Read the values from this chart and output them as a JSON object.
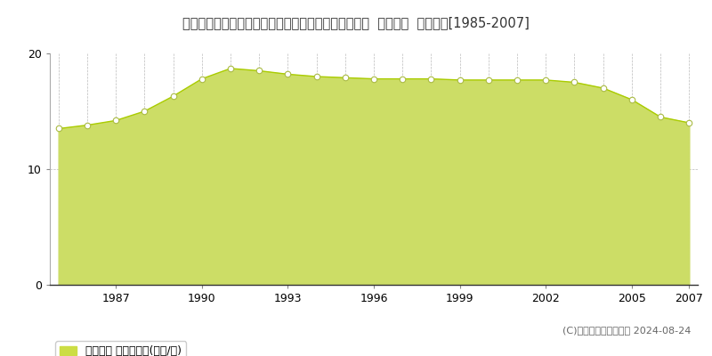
{
  "title": "広島県福山市津之郷町大字加屋字内水越３３４番１外  地価公示  地価推移[1985-2007]",
  "years": [
    1985,
    1986,
    1987,
    1988,
    1989,
    1990,
    1991,
    1992,
    1993,
    1994,
    1995,
    1996,
    1997,
    1998,
    1999,
    2000,
    2001,
    2002,
    2003,
    2004,
    2005,
    2006,
    2007
  ],
  "values": [
    13.5,
    13.8,
    14.2,
    15.0,
    16.3,
    17.8,
    18.7,
    18.5,
    18.2,
    18.0,
    17.9,
    17.8,
    17.8,
    17.8,
    17.7,
    17.7,
    17.7,
    17.7,
    17.5,
    17.0,
    16.0,
    14.5,
    14.0
  ],
  "ylim": [
    0,
    20
  ],
  "yticks": [
    0,
    10,
    20
  ],
  "xticks": [
    1987,
    1990,
    1993,
    1996,
    1999,
    2002,
    2005,
    2007
  ],
  "fill_color": "#ccdd66",
  "line_color": "#aacc00",
  "marker_facecolor": "#ffffff",
  "marker_edgecolor": "#aabb44",
  "grid_color": "#bbbbbb",
  "background_color": "#ffffff",
  "legend_label": "地価公示 平均坪単価(万円/坪)",
  "legend_marker_color": "#ccdd44",
  "copyright_text": "(C)土地価格ドットコム 2024-08-24",
  "title_fontsize": 10.5,
  "axis_fontsize": 9,
  "legend_fontsize": 9,
  "copyright_fontsize": 8
}
